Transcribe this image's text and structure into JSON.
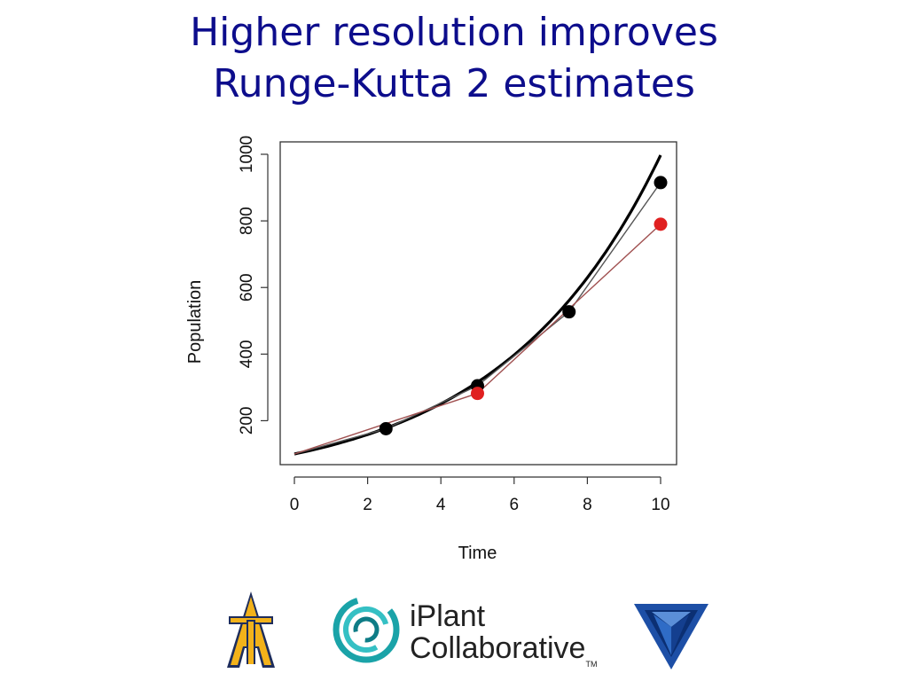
{
  "slide": {
    "title_line1": "Higher resolution improves",
    "title_line2": "Runge-Kutta 2 estimates"
  },
  "chart_data": {
    "type": "line",
    "title": "",
    "xlabel": "Time",
    "ylabel": "Population",
    "xlim": [
      0,
      10
    ],
    "ylim": [
      100,
      1000
    ],
    "xticks": [
      0,
      2,
      4,
      6,
      8,
      10
    ],
    "yticks": [
      200,
      400,
      600,
      800,
      1000
    ],
    "grid": false,
    "legend": "none",
    "analytic_curve": {
      "function": "100*exp(0.23*t)",
      "color": "#000000"
    },
    "series": [
      {
        "x": [
          0,
          2.5,
          5,
          7.5,
          10
        ],
        "y": [
          100,
          176,
          305,
          527,
          915
        ],
        "color": "#000000",
        "line_color": "#555555"
      },
      {
        "x": [
          0,
          5,
          10
        ],
        "y": [
          100,
          282,
          790
        ],
        "color": "#e02020",
        "line_color": "#a05050"
      }
    ]
  },
  "logos": {
    "aggie": "aggie-at-logo",
    "iplant_line1": "iPlant",
    "iplant_line2": "Collaborative",
    "iplant_tm": "TM",
    "vt": "virginia-tech-logo"
  }
}
